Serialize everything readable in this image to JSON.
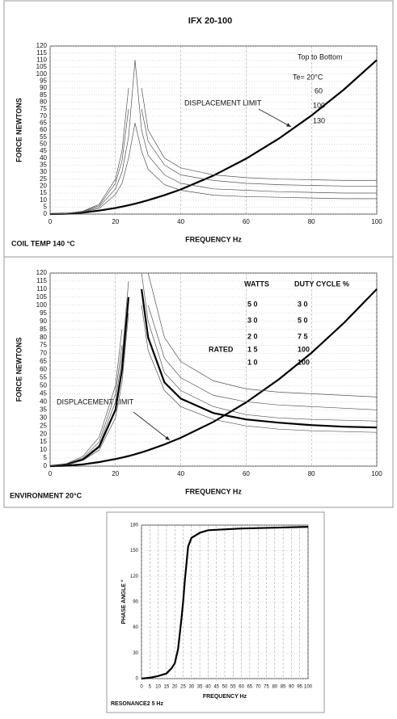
{
  "chart_data": [
    {
      "type": "line",
      "title": "IFX 20-100",
      "xlabel": "FREQUENCY Hz",
      "ylabel": "FORCE NEWTONS",
      "footer": "COIL TEMP   140   °C",
      "xlim": [
        0,
        100
      ],
      "ylim": [
        0,
        120
      ],
      "xticks": [
        0,
        20,
        40,
        60,
        80,
        100
      ],
      "yticks": [
        0,
        5,
        10,
        15,
        20,
        25,
        30,
        35,
        40,
        45,
        50,
        55,
        60,
        65,
        70,
        75,
        80,
        85,
        90,
        95,
        100,
        105,
        110,
        115,
        120
      ],
      "grid": true,
      "annotations": [
        "Top to Bottom",
        "Te= 20°C",
        "60",
        "100",
        "130",
        "DISPLACEMENT LIMIT"
      ],
      "x": [
        0,
        5,
        10,
        15,
        20,
        22,
        24,
        26,
        28,
        30,
        35,
        40,
        50,
        60,
        70,
        80,
        90,
        100
      ],
      "series": [
        {
          "color": "#000000",
          "values": [
            0,
            0.3,
            1.1,
            2.5,
            4.4,
            5.3,
            6.3,
            7.4,
            8.6,
            9.9,
            13.5,
            17.6,
            27.5,
            39.6,
            53.9,
            70.4,
            89.1,
            110
          ]
        },
        {
          "color": "#555555",
          "values": [
            0,
            0.5,
            2,
            7,
            25,
            45,
            90,
            null,
            90,
            60,
            40,
            33,
            28,
            26,
            25,
            24.5,
            24,
            24
          ]
        },
        {
          "color": "#555555",
          "values": [
            0,
            0.5,
            2,
            6,
            22,
            38,
            75,
            null,
            75,
            52,
            35,
            28,
            24,
            22,
            21,
            20.5,
            20,
            20
          ]
        },
        {
          "color": "#555555",
          "values": [
            0,
            0.4,
            1.7,
            5,
            18,
            30,
            55,
            110,
            60,
            42,
            28,
            22,
            18,
            17,
            16,
            15.5,
            15,
            15
          ]
        },
        {
          "color": "#555555",
          "values": [
            0,
            0.3,
            1.5,
            4,
            14,
            22,
            40,
            65,
            45,
            32,
            21,
            17,
            13.5,
            12.5,
            12,
            11.5,
            11,
            11
          ]
        }
      ]
    },
    {
      "type": "line",
      "xlabel": "FREQUENCY Hz",
      "ylabel": "FORCE NEWTONS",
      "footer": "ENVIRONMENT 20°C",
      "xlim": [
        0,
        100
      ],
      "ylim": [
        0,
        120
      ],
      "xticks": [
        0,
        20,
        40,
        60,
        80,
        100
      ],
      "yticks": [
        0,
        5,
        10,
        15,
        20,
        25,
        30,
        35,
        40,
        45,
        50,
        55,
        60,
        65,
        70,
        75,
        80,
        85,
        90,
        95,
        100,
        105,
        110,
        115,
        120
      ],
      "grid": true,
      "annotations": [
        "DISPLACEMENT LIMIT"
      ],
      "table": {
        "headers": [
          "WATTS",
          "DUTY CYCLE %"
        ],
        "row_label": "RATED",
        "rows": [
          [
            "5 0",
            "3 0"
          ],
          [
            "3 0",
            "5 0"
          ],
          [
            "2 0",
            "7 5"
          ],
          [
            "1 5",
            "100"
          ],
          [
            "1 0",
            "100"
          ]
        ]
      },
      "x": [
        0,
        5,
        10,
        15,
        20,
        22,
        24,
        26,
        28,
        30,
        35,
        40,
        50,
        60,
        70,
        80,
        90,
        100
      ],
      "series": [
        {
          "color": "#000000",
          "values": [
            0,
            0.3,
            1.1,
            2.5,
            4.4,
            5.3,
            6.3,
            7.4,
            8.6,
            9.9,
            13.5,
            17.6,
            27.5,
            39.6,
            53.9,
            70.4,
            89.1,
            110
          ]
        },
        {
          "color": "#555555",
          "values": [
            0,
            1.5,
            6,
            18,
            50,
            85,
            null,
            null,
            null,
            120,
            80,
            65,
            53,
            48,
            46,
            45,
            44,
            43
          ]
        },
        {
          "color": "#555555",
          "values": [
            0,
            1.3,
            5,
            15,
            45,
            75,
            null,
            null,
            null,
            100,
            67,
            55,
            44,
            40,
            38,
            37,
            36,
            35
          ]
        },
        {
          "color": "#555555",
          "values": [
            0,
            1.1,
            4.5,
            13,
            40,
            68,
            115,
            null,
            120,
            90,
            58,
            47,
            37,
            32,
            30,
            29,
            28.5,
            28
          ]
        },
        {
          "color": "#000000",
          "values": [
            0,
            1,
            4,
            12,
            35,
            60,
            105,
            null,
            110,
            80,
            52,
            42,
            33,
            29,
            27,
            25.5,
            24.5,
            24
          ]
        },
        {
          "color": "#555555",
          "values": [
            0,
            0.9,
            3.5,
            10,
            30,
            52,
            95,
            null,
            100,
            72,
            47,
            37,
            29,
            25,
            23,
            22,
            21.5,
            21
          ]
        }
      ]
    },
    {
      "type": "line",
      "xlabel": "FREQUENCY Hz",
      "ylabel": "PHASE ANGLE °",
      "footer": "RESONANCE2 5      Hz",
      "xlim": [
        0,
        100
      ],
      "ylim": [
        0,
        180
      ],
      "xticks": [
        0,
        5,
        10,
        15,
        20,
        25,
        30,
        35,
        40,
        45,
        50,
        55,
        60,
        65,
        70,
        75,
        80,
        85,
        90,
        95,
        100
      ],
      "yticks": [
        0,
        30,
        60,
        90,
        120,
        150,
        180
      ],
      "grid": true,
      "x": [
        0,
        5,
        10,
        15,
        18,
        20,
        22,
        24,
        25,
        26,
        28,
        30,
        35,
        40,
        60,
        80,
        100
      ],
      "series": [
        {
          "color": "#000000",
          "values": [
            0,
            1,
            3,
            6,
            12,
            18,
            35,
            70,
            90,
            115,
            155,
            165,
            171,
            174,
            176,
            177,
            178
          ]
        }
      ]
    }
  ]
}
